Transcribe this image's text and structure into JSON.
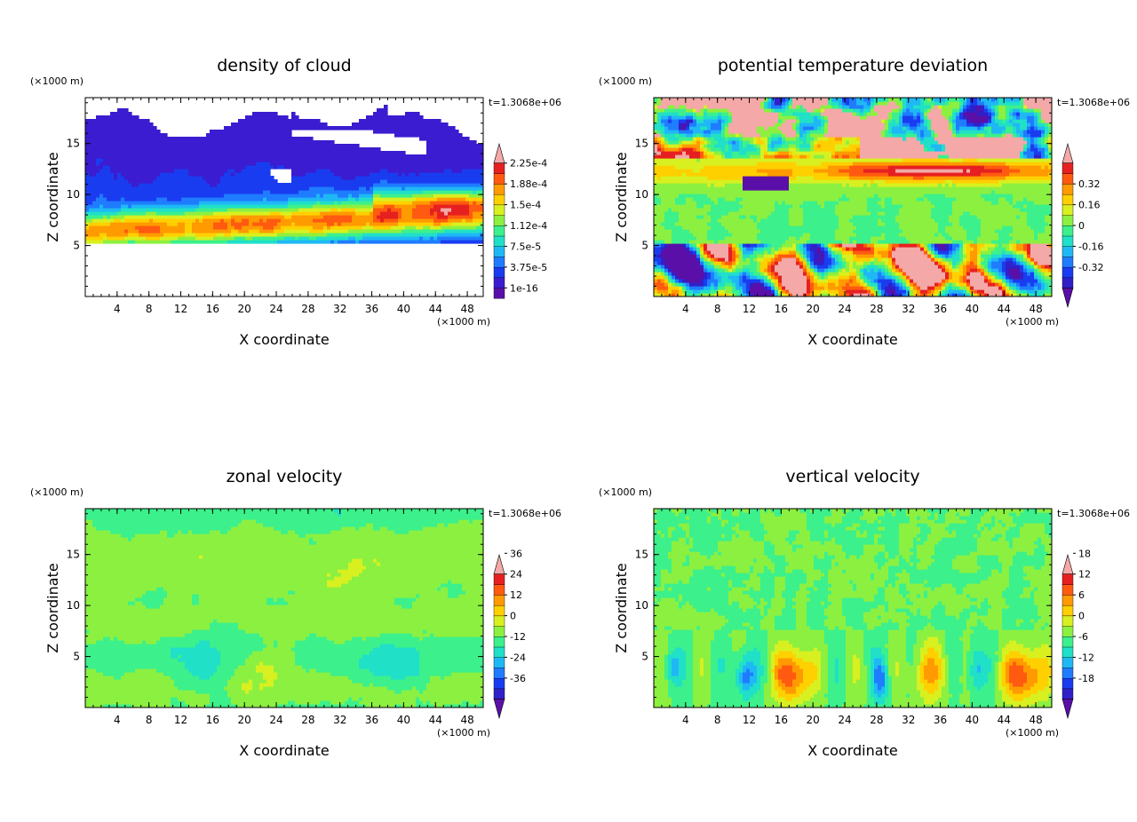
{
  "chart_data": [
    {
      "type": "heatmap",
      "title": "density of cloud",
      "xlabel": "X coordinate",
      "ylabel": "Z coordinate",
      "xunit": "(×1000 m)",
      "yunit": "(×1000 m)",
      "time_label": "t=1.3068e+06",
      "xlim": [
        0,
        50
      ],
      "ylim": [
        0,
        19.5
      ],
      "xticks": [
        4,
        8,
        12,
        16,
        20,
        24,
        28,
        32,
        36,
        40,
        44,
        48
      ],
      "yticks": [
        5,
        10,
        15
      ],
      "colorbar": {
        "levels": [
          1e-16,
          3.75e-05,
          7.5e-05,
          0.000112,
          0.00015,
          0.000188,
          0.000225
        ],
        "labels": [
          "1e-16",
          "3.75e-5",
          "7.5e-5",
          "1.12e-4",
          "1.5e-4",
          "1.88e-4",
          "2.25e-4"
        ],
        "colors": [
          "#5a0fa8",
          "#3c1cd0",
          "#1a3cf0",
          "#1f7cff",
          "#1fb8f5",
          "#20e0c8",
          "#3cf08c",
          "#8cf040",
          "#d8f020",
          "#ffd000",
          "#ff9a00",
          "#ff5a10",
          "#e62020",
          "#f4a8a8"
        ],
        "end_low": false,
        "end_high": true
      },
      "field": "cloud",
      "vmin": -0.1,
      "vmax": 1.0
    },
    {
      "type": "heatmap",
      "title": "potential temperature deviation",
      "xlabel": "X coordinate",
      "ylabel": "Z coordinate",
      "xunit": "(×1000 m)",
      "yunit": "(×1000 m)",
      "time_label": "t=1.3068e+06",
      "xlim": [
        0,
        50
      ],
      "ylim": [
        0,
        19.5
      ],
      "xticks": [
        4,
        8,
        12,
        16,
        20,
        24,
        28,
        32,
        36,
        40,
        44,
        48
      ],
      "yticks": [
        5,
        10,
        15
      ],
      "colorbar": {
        "levels": [
          -0.32,
          -0.16,
          0,
          0.16,
          0.32
        ],
        "labels": [
          "-0.32",
          "-0.16",
          "0",
          "0.16",
          "0.32"
        ],
        "colors": [
          "#5a0fa8",
          "#3020c8",
          "#1a3cf0",
          "#1f7cff",
          "#1fb8f5",
          "#20e0c8",
          "#3cf08c",
          "#8cf040",
          "#d8f020",
          "#ffd000",
          "#ff9a00",
          "#ff5a10",
          "#e62020",
          "#f4a8a8"
        ],
        "end_low": true,
        "end_high": true
      },
      "field": "theta",
      "vmin": -0.5,
      "vmax": 0.5
    },
    {
      "type": "heatmap",
      "title": "zonal velocity",
      "xlabel": "X coordinate",
      "ylabel": "Z coordinate",
      "xunit": "(×1000 m)",
      "yunit": "(×1000 m)",
      "time_label": "t=1.3068e+06",
      "xlim": [
        0,
        50
      ],
      "ylim": [
        0,
        19.5
      ],
      "xticks": [
        4,
        8,
        12,
        16,
        20,
        24,
        28,
        32,
        36,
        40,
        44,
        48
      ],
      "yticks": [
        5,
        10,
        15
      ],
      "colorbar": {
        "levels": [
          -36,
          -24,
          -12,
          0,
          12,
          24,
          36
        ],
        "labels": [
          "-36",
          "-24",
          "-12",
          "0",
          "12",
          "24",
          "36"
        ],
        "colors": [
          "#5a0fa8",
          "#3020c8",
          "#1a3cf0",
          "#1f7cff",
          "#1fb8f5",
          "#20e0c8",
          "#3cf08c",
          "#8cf040",
          "#d8f020",
          "#ffd000",
          "#ff9a00",
          "#ff5a10",
          "#e62020",
          "#f4a8a8"
        ],
        "end_low": true,
        "end_high": true
      },
      "field": "u",
      "vmin": -50,
      "vmax": 50
    },
    {
      "type": "heatmap",
      "title": "vertical velocity",
      "xlabel": "X coordinate",
      "ylabel": "Z coordinate",
      "xunit": "(×1000 m)",
      "yunit": "(×1000 m)",
      "time_label": "t=1.3068e+06",
      "xlim": [
        0,
        50
      ],
      "ylim": [
        0,
        19.5
      ],
      "xticks": [
        4,
        8,
        12,
        16,
        20,
        24,
        28,
        32,
        36,
        40,
        44,
        48
      ],
      "yticks": [
        5,
        10,
        15
      ],
      "colorbar": {
        "levels": [
          -18,
          -12,
          -6,
          0,
          6,
          12,
          18
        ],
        "labels": [
          "-18",
          "-12",
          "-6",
          "0",
          "6",
          "12",
          "18"
        ],
        "colors": [
          "#5a0fa8",
          "#3020c8",
          "#1a3cf0",
          "#1f7cff",
          "#1fb8f5",
          "#20e0c8",
          "#3cf08c",
          "#8cf040",
          "#d8f020",
          "#ffd000",
          "#ff9a00",
          "#ff5a10",
          "#e62020",
          "#f4a8a8"
        ],
        "end_low": true,
        "end_high": true
      },
      "field": "w",
      "vmin": -25,
      "vmax": 25
    }
  ]
}
